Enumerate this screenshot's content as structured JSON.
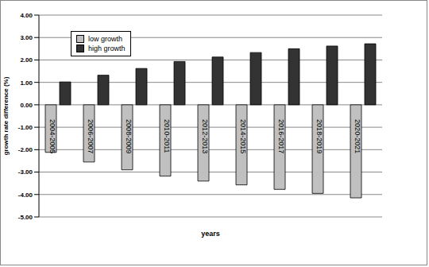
{
  "chart_data": {
    "type": "bar",
    "x_label": "years",
    "y_label": "growth rate difference (%)",
    "categories": [
      "2004-2005",
      "2006-2007",
      "2008-2009",
      "2010-2011",
      "2012-2013",
      "2014-2015",
      "2016-2017",
      "2018-2019",
      "2020-2021"
    ],
    "series": [
      {
        "name": "low growth",
        "color": "#c0c0c0",
        "values": [
          -2.12,
          -2.55,
          -2.9,
          -3.18,
          -3.4,
          -3.57,
          -3.77,
          -3.95,
          -4.15
        ]
      },
      {
        "name": "high growth",
        "color": "#333333",
        "values": [
          1.02,
          1.32,
          1.62,
          1.93,
          2.13,
          2.33,
          2.5,
          2.62,
          2.72
        ]
      }
    ],
    "ylim": [
      -5,
      4
    ],
    "yticks": [
      {
        "value": -5,
        "label": "-5.00"
      },
      {
        "value": -4,
        "label": "-4.00"
      },
      {
        "value": -3,
        "label": "-3.00"
      },
      {
        "value": -2,
        "label": "-2.00"
      },
      {
        "value": -1,
        "label": "-1.00"
      },
      {
        "value": 0,
        "label": "0.00"
      },
      {
        "value": 1,
        "label": "1.00"
      },
      {
        "value": 2,
        "label": "2.00"
      },
      {
        "value": 3,
        "label": "3.00"
      },
      {
        "value": 4,
        "label": "4.00"
      }
    ],
    "grid": true,
    "legend": "upper left"
  }
}
